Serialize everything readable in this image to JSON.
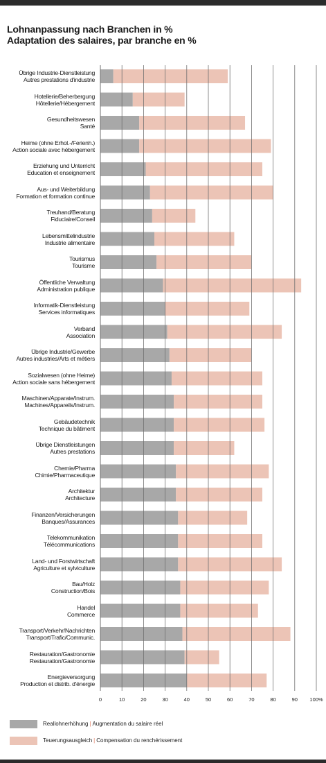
{
  "title": {
    "line1": "Lohnanpassung nach Branchen in %",
    "line2": "Adaptation des salaires, par branche en %"
  },
  "colors": {
    "real": "#a8a8a8",
    "compensation": "#ecc4b6",
    "grid": "#6f6f6f"
  },
  "legend": [
    {
      "de": "Reallohnerhöhung",
      "fr": "Augmentation du salaire réel",
      "color": "#a8a8a8"
    },
    {
      "de": "Teuerungsausgleich",
      "fr": "Compensation du renchérissement",
      "color": "#ecc4b6"
    }
  ],
  "chart_data": {
    "type": "bar",
    "orientation": "horizontal",
    "stacked": true,
    "xlim": [
      0,
      100
    ],
    "ticks": [
      "0",
      "10",
      "20",
      "30",
      "40",
      "50",
      "60",
      "70",
      "80",
      "90",
      "100%"
    ],
    "grid": true,
    "categories": [
      [
        "Übrige Industrie-Dienstleistung",
        "Autres prestations d'industrie"
      ],
      [
        "Hotellerie/Beherbergung",
        "Hôtellerie/Hébergement"
      ],
      [
        "Gesundheitswesen",
        "Santé"
      ],
      [
        "Heime (ohne Erhol.-/Ferienh.)",
        "Action sociale avec hébergement"
      ],
      [
        "Erziehung und Unterricht",
        "Education et enseignement"
      ],
      [
        "Aus- und Weiterbildung",
        "Formation et formation continue"
      ],
      [
        "Treuhand/Beratung",
        "Fiduciaire/Conseil"
      ],
      [
        "Lebensmittelindustrie",
        "Industrie alimentaire"
      ],
      [
        "Tourismus",
        "Tourisme"
      ],
      [
        "Öffentliche Verwaltung",
        "Administration publique"
      ],
      [
        "Informatik-Dienstleistung",
        "Services informatiques"
      ],
      [
        "Verband",
        "Association"
      ],
      [
        "Übrige Industrie/Gewerbe",
        "Autres industries/Arts et métiers"
      ],
      [
        "Sozialwesen (ohne Heime)",
        "Action sociale sans hébergement"
      ],
      [
        "Maschinen/Apparate/Instrum.",
        "Machines/Appareils/Instrum."
      ],
      [
        "Gebäudetechnik",
        "Technique du bâtiment"
      ],
      [
        "Übrige Dienstleistungen",
        "Autres prestations"
      ],
      [
        "Chemie/Pharma",
        "Chimie/Pharmaceutique"
      ],
      [
        "Architektur",
        "Architecture"
      ],
      [
        "Finanzen/Versicherungen",
        "Banques/Assurances"
      ],
      [
        "Telekommunikation",
        "Télécommunications"
      ],
      [
        "Land- und Forstwirtschaft",
        "Agriculture et sylviculture"
      ],
      [
        "Bau/Holz",
        "Construction/Bois"
      ],
      [
        "Handel",
        "Commerce"
      ],
      [
        "Transport/Verkehr/Nachrichten",
        "Transport/Trafic/Communic."
      ],
      [
        "Restauration/Gastronomie",
        "Restauration/Gastronomie"
      ],
      [
        "Energieversorgung",
        "Production et distrib. d'énergie"
      ]
    ],
    "series": [
      {
        "name": "Reallohnerhöhung | Augmentation du salaire réel",
        "values": [
          6,
          15,
          18,
          18,
          21,
          23,
          24,
          25,
          26,
          29,
          30,
          31,
          32,
          33,
          34,
          34,
          34,
          35,
          35,
          36,
          36,
          36,
          37,
          37,
          38,
          39,
          40
        ]
      },
      {
        "name": "Teuerungsausgleich | Compensation du renchérissement",
        "values": [
          53,
          24,
          49,
          61,
          54,
          57,
          20,
          37,
          44,
          64,
          39,
          53,
          38,
          42,
          41,
          42,
          28,
          43,
          40,
          32,
          39,
          48,
          41,
          36,
          50,
          16,
          37
        ]
      }
    ]
  }
}
